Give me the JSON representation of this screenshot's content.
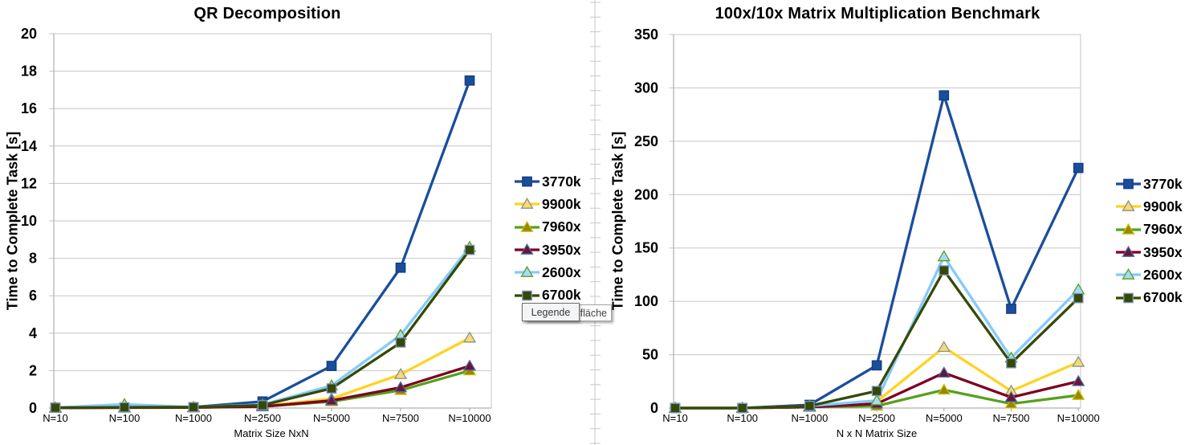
{
  "window": {
    "background": "#ffffff"
  },
  "divider": {
    "color": "#c8c8c8",
    "tick_spacing": 18.3
  },
  "tooltip": {
    "front": "Legende",
    "back_visible": "gsfläche"
  },
  "chart_data": [
    {
      "type": "line",
      "title": "QR Decomposition",
      "xlabel": "Matrix Size NxN",
      "ylabel": "Time to Complete Task [s]",
      "categories": [
        "N=10",
        "N=100",
        "N=1000",
        "N=2500",
        "N=5000",
        "N=7500",
        "N=10000"
      ],
      "ylim": [
        0,
        20
      ],
      "ytick_step": 2,
      "yticks": [
        0,
        2,
        4,
        6,
        8,
        10,
        12,
        14,
        16,
        18,
        20
      ],
      "grid": "horizontal",
      "legend_position": "right",
      "series": [
        {
          "name": "3770k",
          "color": "#1a4e9c",
          "marker": {
            "shape": "square",
            "fill": "#1a4e9c",
            "stroke": "#123d7a"
          },
          "values": [
            0.02,
            0.03,
            0.05,
            0.35,
            2.25,
            7.5,
            17.5
          ]
        },
        {
          "name": "9900k",
          "color": "#ffd320",
          "marker": {
            "shape": "triangle",
            "fill": "#f3dc73",
            "stroke": "#8f8f8f"
          },
          "values": [
            0.01,
            0.02,
            0.03,
            0.1,
            0.5,
            1.8,
            3.75
          ]
        },
        {
          "name": "7960x",
          "color": "#57a01c",
          "marker": {
            "shape": "triangle",
            "fill": "#948900",
            "stroke": "#cdbe00"
          },
          "values": [
            0.01,
            0.03,
            0.03,
            0.08,
            0.35,
            0.95,
            2.0
          ]
        },
        {
          "name": "3950x",
          "color": "#7e0021",
          "marker": {
            "shape": "triangle",
            "fill": "#6b1630",
            "stroke": "#4a67b0"
          },
          "values": [
            0.01,
            0.02,
            0.03,
            0.08,
            0.4,
            1.1,
            2.25
          ]
        },
        {
          "name": "2600x",
          "color": "#83caff",
          "marker": {
            "shape": "triangle",
            "fill": "#a8d9fa",
            "stroke": "#57a01c"
          },
          "values": [
            0.02,
            0.2,
            0.05,
            0.18,
            1.2,
            3.9,
            8.6
          ]
        },
        {
          "name": "6700k",
          "color": "#344a04",
          "marker": {
            "shape": "square",
            "fill": "#344a04",
            "stroke": "#7e95c4"
          },
          "values": [
            0.02,
            0.04,
            0.05,
            0.15,
            1.05,
            3.5,
            8.45
          ]
        }
      ]
    },
    {
      "type": "line",
      "title": "100x/10x Matrix Multiplication Benchmark",
      "xlabel": "N x N Matrix Size",
      "ylabel": "Time to Complete Task [s]",
      "categories": [
        "N=10",
        "N=100",
        "N=1000",
        "N=2500",
        "N=5000",
        "N=7500",
        "N=10000"
      ],
      "ylim": [
        0,
        350
      ],
      "ytick_step": 50,
      "yticks": [
        0,
        50,
        100,
        150,
        200,
        250,
        300,
        350
      ],
      "grid": "horizontal",
      "legend_position": "right",
      "series": [
        {
          "name": "3770k",
          "color": "#1a4e9c",
          "marker": {
            "shape": "square",
            "fill": "#1a4e9c",
            "stroke": "#123d7a"
          },
          "values": [
            0,
            0,
            3,
            40,
            293,
            93,
            225
          ]
        },
        {
          "name": "9900k",
          "color": "#ffd320",
          "marker": {
            "shape": "triangle",
            "fill": "#f3dc73",
            "stroke": "#8f8f8f"
          },
          "values": [
            0,
            0,
            1,
            6,
            57,
            16,
            43
          ]
        },
        {
          "name": "7960x",
          "color": "#57a01c",
          "marker": {
            "shape": "triangle",
            "fill": "#948900",
            "stroke": "#cdbe00"
          },
          "values": [
            0,
            0,
            1,
            2,
            17,
            4,
            12
          ]
        },
        {
          "name": "3950x",
          "color": "#7e0021",
          "marker": {
            "shape": "triangle",
            "fill": "#6b1630",
            "stroke": "#4a67b0"
          },
          "values": [
            0,
            0,
            1,
            4,
            33,
            10,
            25
          ]
        },
        {
          "name": "2600x",
          "color": "#83caff",
          "marker": {
            "shape": "triangle",
            "fill": "#a8d9fa",
            "stroke": "#57a01c"
          },
          "values": [
            0,
            0,
            2,
            7,
            142,
            47,
            111
          ]
        },
        {
          "name": "6700k",
          "color": "#344a04",
          "marker": {
            "shape": "square",
            "fill": "#344a04",
            "stroke": "#7e95c4"
          },
          "values": [
            0,
            0,
            2,
            16,
            129,
            42,
            103
          ]
        }
      ]
    }
  ]
}
